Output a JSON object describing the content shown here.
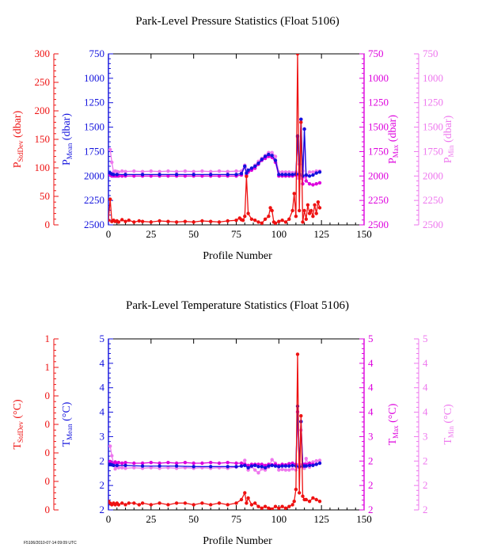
{
  "colors": {
    "stddev": "#ee1111",
    "mean": "#1111dd",
    "max": "#dd00dd",
    "min": "#ee77ee",
    "frame": "#000000"
  },
  "footer_text": "F5106/2010-07-14 09:09 UTC",
  "chart_data": [
    {
      "type": "line",
      "title": "Park-Level Pressure Statistics (Float 5106)",
      "xlabel": "Profile Number",
      "xlim": [
        0,
        150
      ],
      "xticks": [
        "0",
        "25",
        "50",
        "75",
        "100",
        "125",
        "150"
      ],
      "axes": [
        {
          "side": "left-outer",
          "color": "stddev",
          "label_main": "P",
          "label_sub": "StdDev",
          "label_unit": " (dbar)",
          "lim": [
            0,
            300
          ],
          "inverted": false,
          "ticks": [
            "0",
            "50",
            "100",
            "150",
            "200",
            "250",
            "300"
          ]
        },
        {
          "side": "left-inner",
          "color": "mean",
          "label_main": "P",
          "label_sub": "Mean",
          "label_unit": " (dbar)",
          "lim": [
            2500,
            750
          ],
          "inverted": true,
          "ticks": [
            "2500",
            "2250",
            "2000",
            "1750",
            "1500",
            "1250",
            "1000",
            "750"
          ]
        },
        {
          "side": "right-inner",
          "color": "max",
          "label_main": "P",
          "label_sub": "Max",
          "label_unit": " (dbar)",
          "lim": [
            2500,
            750
          ],
          "inverted": true,
          "ticks": [
            "2500",
            "2250",
            "2000",
            "1750",
            "1500",
            "1250",
            "1000",
            "750"
          ]
        },
        {
          "side": "right-outer",
          "color": "min",
          "label_main": "P",
          "label_sub": "Min",
          "label_unit": " (dbar)",
          "lim": [
            2500,
            750
          ],
          "inverted": true,
          "ticks": [
            "2500",
            "2250",
            "2000",
            "1750",
            "1500",
            "1250",
            "1000",
            "750"
          ]
        }
      ],
      "series": [
        {
          "key": "min",
          "axis": 3,
          "x": [
            1,
            2,
            3,
            4,
            5,
            6,
            8,
            10,
            15,
            20,
            25,
            30,
            35,
            40,
            45,
            50,
            55,
            60,
            65,
            70,
            75,
            78,
            80,
            82,
            84,
            86,
            88,
            90,
            92,
            94,
            96,
            98,
            100,
            102,
            104,
            106,
            108,
            110,
            111,
            112,
            113,
            114,
            115,
            116,
            118,
            120,
            122,
            124
          ],
          "y": [
            1730,
            1860,
            1960,
            1950,
            1955,
            1960,
            1950,
            1955,
            1950,
            1955,
            1950,
            1955,
            1950,
            1955,
            1950,
            1955,
            1950,
            1955,
            1950,
            1955,
            1950,
            1950,
            1890,
            1940,
            1920,
            1890,
            1850,
            1820,
            1790,
            1760,
            1760,
            1800,
            1960,
            1960,
            1960,
            1960,
            1965,
            1960,
            2020,
            1880,
            2020,
            1950,
            2010,
            2000,
            1960,
            1960,
            1950,
            1950
          ]
        },
        {
          "key": "max",
          "axis": 2,
          "x": [
            1,
            2,
            3,
            4,
            5,
            6,
            8,
            10,
            15,
            20,
            25,
            30,
            35,
            40,
            45,
            50,
            55,
            60,
            65,
            70,
            75,
            78,
            80,
            81,
            82,
            84,
            86,
            88,
            90,
            92,
            94,
            96,
            98,
            100,
            102,
            104,
            106,
            108,
            110,
            111,
            112,
            113,
            114,
            115,
            116,
            118,
            120,
            122,
            124
          ],
          "y": [
            1990,
            2000,
            2000,
            2000,
            2000,
            2000,
            2000,
            2000,
            2000,
            2000,
            2000,
            2000,
            2000,
            2000,
            2000,
            2000,
            2000,
            2000,
            2000,
            2000,
            2000,
            1990,
            1900,
            1990,
            1960,
            1940,
            1920,
            1880,
            1840,
            1820,
            1800,
            1810,
            1860,
            2000,
            2000,
            2000,
            2000,
            2000,
            1990,
            1600,
            1990,
            1420,
            2080,
            1520,
            2050,
            2080,
            2090,
            2080,
            2070
          ]
        },
        {
          "key": "mean",
          "axis": 1,
          "x": [
            1,
            2,
            3,
            5,
            10,
            20,
            30,
            40,
            50,
            60,
            70,
            75,
            78,
            80,
            81,
            82,
            84,
            86,
            88,
            90,
            92,
            94,
            96,
            98,
            100,
            102,
            104,
            106,
            108,
            110,
            111,
            112,
            113,
            114,
            115,
            116,
            118,
            120,
            122,
            124
          ],
          "y": [
            1970,
            1980,
            1985,
            1985,
            1985,
            1985,
            1985,
            1985,
            1985,
            1985,
            1985,
            1985,
            1975,
            1900,
            1970,
            1940,
            1920,
            1900,
            1870,
            1830,
            1800,
            1780,
            1790,
            1840,
            1985,
            1985,
            1985,
            1985,
            1985,
            1980,
            1590,
            1980,
            1420,
            2000,
            1520,
            1990,
            2000,
            1990,
            1970,
            1960
          ]
        },
        {
          "key": "stddev",
          "axis": 0,
          "x": [
            0,
            1,
            2,
            3,
            4,
            5,
            6,
            8,
            10,
            12,
            15,
            18,
            20,
            25,
            30,
            35,
            40,
            45,
            50,
            55,
            60,
            65,
            70,
            75,
            77,
            78,
            79,
            80,
            81,
            82,
            84,
            86,
            88,
            90,
            92,
            94,
            95,
            96,
            97,
            98,
            100,
            102,
            104,
            106,
            108,
            109,
            110,
            111,
            112,
            113,
            114,
            115,
            116,
            117,
            118,
            119,
            120,
            121,
            122,
            123,
            124
          ],
          "y": [
            8,
            45,
            6,
            8,
            6,
            7,
            5,
            9,
            6,
            8,
            5,
            7,
            6,
            5,
            7,
            6,
            5,
            6,
            5,
            7,
            6,
            5,
            7,
            8,
            12,
            9,
            8,
            15,
            85,
            20,
            10,
            8,
            5,
            3,
            10,
            15,
            30,
            25,
            5,
            3,
            6,
            8,
            5,
            10,
            25,
            55,
            15,
            300,
            25,
            180,
            5,
            25,
            10,
            35,
            20,
            25,
            15,
            35,
            20,
            40,
            30
          ]
        }
      ]
    },
    {
      "type": "line",
      "title": "Park-Level Temperature Statistics (Float 5106)",
      "xlabel": "Profile Number",
      "xlim": [
        0,
        150
      ],
      "xticks": [
        "0",
        "25",
        "50",
        "75",
        "100",
        "125",
        "150"
      ],
      "axes": [
        {
          "side": "left-outer",
          "color": "stddev",
          "label_main": "T",
          "label_sub": "StdDev",
          "label_unit": " (°C)",
          "lim": [
            0,
            1
          ],
          "inverted": false,
          "ticks": [
            "0",
            "0",
            "0",
            "0",
            "0",
            "1",
            "1"
          ]
        },
        {
          "side": "left-inner",
          "color": "mean",
          "label_main": "T",
          "label_sub": "Mean",
          "label_unit": " (°C)",
          "lim": [
            2,
            5
          ],
          "inverted": false,
          "ticks": [
            "2",
            "2",
            "2",
            "3",
            "4",
            "4",
            "4",
            "5"
          ]
        },
        {
          "side": "right-inner",
          "color": "max",
          "label_main": "T",
          "label_sub": "Max",
          "label_unit": " (°C)",
          "lim": [
            2,
            5
          ],
          "inverted": false,
          "ticks": [
            "2",
            "2",
            "2",
            "3",
            "4",
            "4",
            "4",
            "5"
          ]
        },
        {
          "side": "right-outer",
          "color": "min",
          "label_main": "T",
          "label_sub": "Min",
          "label_unit": " (°C)",
          "lim": [
            2,
            5
          ],
          "inverted": false,
          "ticks": [
            "2",
            "2",
            "2",
            "3",
            "4",
            "4",
            "4",
            "5"
          ]
        }
      ],
      "series": [
        {
          "key": "min",
          "axis": 3,
          "x": [
            1,
            2,
            3,
            4,
            5,
            6,
            8,
            10,
            15,
            20,
            25,
            30,
            35,
            40,
            45,
            50,
            55,
            60,
            65,
            70,
            75,
            78,
            80,
            82,
            84,
            86,
            88,
            90,
            92,
            94,
            96,
            98,
            100,
            102,
            104,
            106,
            108,
            110,
            111,
            112,
            113,
            114,
            115,
            116,
            118,
            120,
            122,
            124
          ],
          "y": [
            3.12,
            2.95,
            2.82,
            2.72,
            2.76,
            2.74,
            2.74,
            2.73,
            2.74,
            2.73,
            2.74,
            2.73,
            2.74,
            2.73,
            2.74,
            2.73,
            2.74,
            2.73,
            2.74,
            2.73,
            2.75,
            2.77,
            2.87,
            2.7,
            2.76,
            2.7,
            2.65,
            2.72,
            2.7,
            2.75,
            2.88,
            2.82,
            2.7,
            2.71,
            2.7,
            2.7,
            2.72,
            2.7,
            2.75,
            2.8,
            3.4,
            2.75,
            2.73,
            2.9,
            2.75,
            2.84,
            2.86,
            2.87
          ]
        },
        {
          "key": "max",
          "axis": 2,
          "x": [
            1,
            2,
            3,
            4,
            5,
            6,
            8,
            10,
            15,
            20,
            25,
            30,
            35,
            40,
            45,
            50,
            55,
            60,
            65,
            70,
            75,
            78,
            80,
            82,
            84,
            86,
            88,
            90,
            92,
            94,
            96,
            98,
            100,
            102,
            104,
            106,
            108,
            110,
            111,
            112,
            113,
            114,
            115,
            116,
            118,
            120,
            122,
            124
          ],
          "y": [
            2.85,
            2.82,
            2.81,
            2.84,
            2.82,
            2.83,
            2.82,
            2.83,
            2.82,
            2.82,
            2.83,
            2.82,
            2.83,
            2.82,
            2.83,
            2.82,
            2.82,
            2.83,
            2.82,
            2.83,
            2.82,
            2.82,
            2.8,
            2.78,
            2.8,
            2.8,
            2.8,
            2.8,
            2.78,
            2.8,
            2.79,
            2.8,
            2.78,
            2.8,
            2.79,
            2.81,
            2.82,
            2.8,
            3.72,
            2.75,
            3.55,
            2.8,
            2.8,
            2.8,
            2.82,
            2.8,
            2.8,
            2.82
          ]
        },
        {
          "key": "mean",
          "axis": 1,
          "x": [
            1,
            2,
            3,
            5,
            10,
            20,
            30,
            40,
            50,
            60,
            70,
            75,
            78,
            80,
            82,
            84,
            86,
            88,
            90,
            92,
            94,
            96,
            98,
            100,
            102,
            104,
            106,
            108,
            110,
            111,
            112,
            113,
            114,
            115,
            116,
            118,
            120,
            122,
            124
          ],
          "y": [
            2.8,
            2.79,
            2.78,
            2.78,
            2.78,
            2.77,
            2.77,
            2.77,
            2.76,
            2.76,
            2.76,
            2.76,
            2.77,
            2.78,
            2.74,
            2.77,
            2.78,
            2.76,
            2.76,
            2.74,
            2.77,
            2.78,
            2.77,
            2.76,
            2.77,
            2.77,
            2.77,
            2.78,
            2.77,
            3.82,
            2.76,
            3.55,
            2.77,
            2.77,
            2.77,
            2.78,
            2.78,
            2.8,
            2.82
          ]
        },
        {
          "key": "stddev",
          "axis": 0,
          "x": [
            0,
            1,
            2,
            3,
            4,
            5,
            6,
            8,
            10,
            12,
            15,
            18,
            20,
            25,
            30,
            35,
            40,
            45,
            50,
            55,
            60,
            65,
            70,
            75,
            78,
            80,
            81,
            82,
            84,
            86,
            88,
            90,
            92,
            94,
            96,
            98,
            100,
            102,
            104,
            106,
            108,
            109,
            110,
            111,
            112,
            113,
            114,
            115,
            116,
            118,
            120,
            122,
            124
          ],
          "y": [
            0.05,
            0.04,
            0.03,
            0.04,
            0.03,
            0.04,
            0.03,
            0.04,
            0.03,
            0.04,
            0.04,
            0.03,
            0.04,
            0.03,
            0.04,
            0.03,
            0.04,
            0.04,
            0.03,
            0.04,
            0.03,
            0.04,
            0.03,
            0.04,
            0.06,
            0.1,
            0.04,
            0.07,
            0.03,
            0.04,
            0.02,
            0.01,
            0.02,
            0.01,
            0.005,
            0.02,
            0.01,
            0.02,
            0.01,
            0.02,
            0.03,
            0.05,
            0.12,
            0.91,
            0.1,
            0.55,
            0.08,
            0.06,
            0.06,
            0.05,
            0.07,
            0.06,
            0.05
          ]
        }
      ]
    }
  ]
}
